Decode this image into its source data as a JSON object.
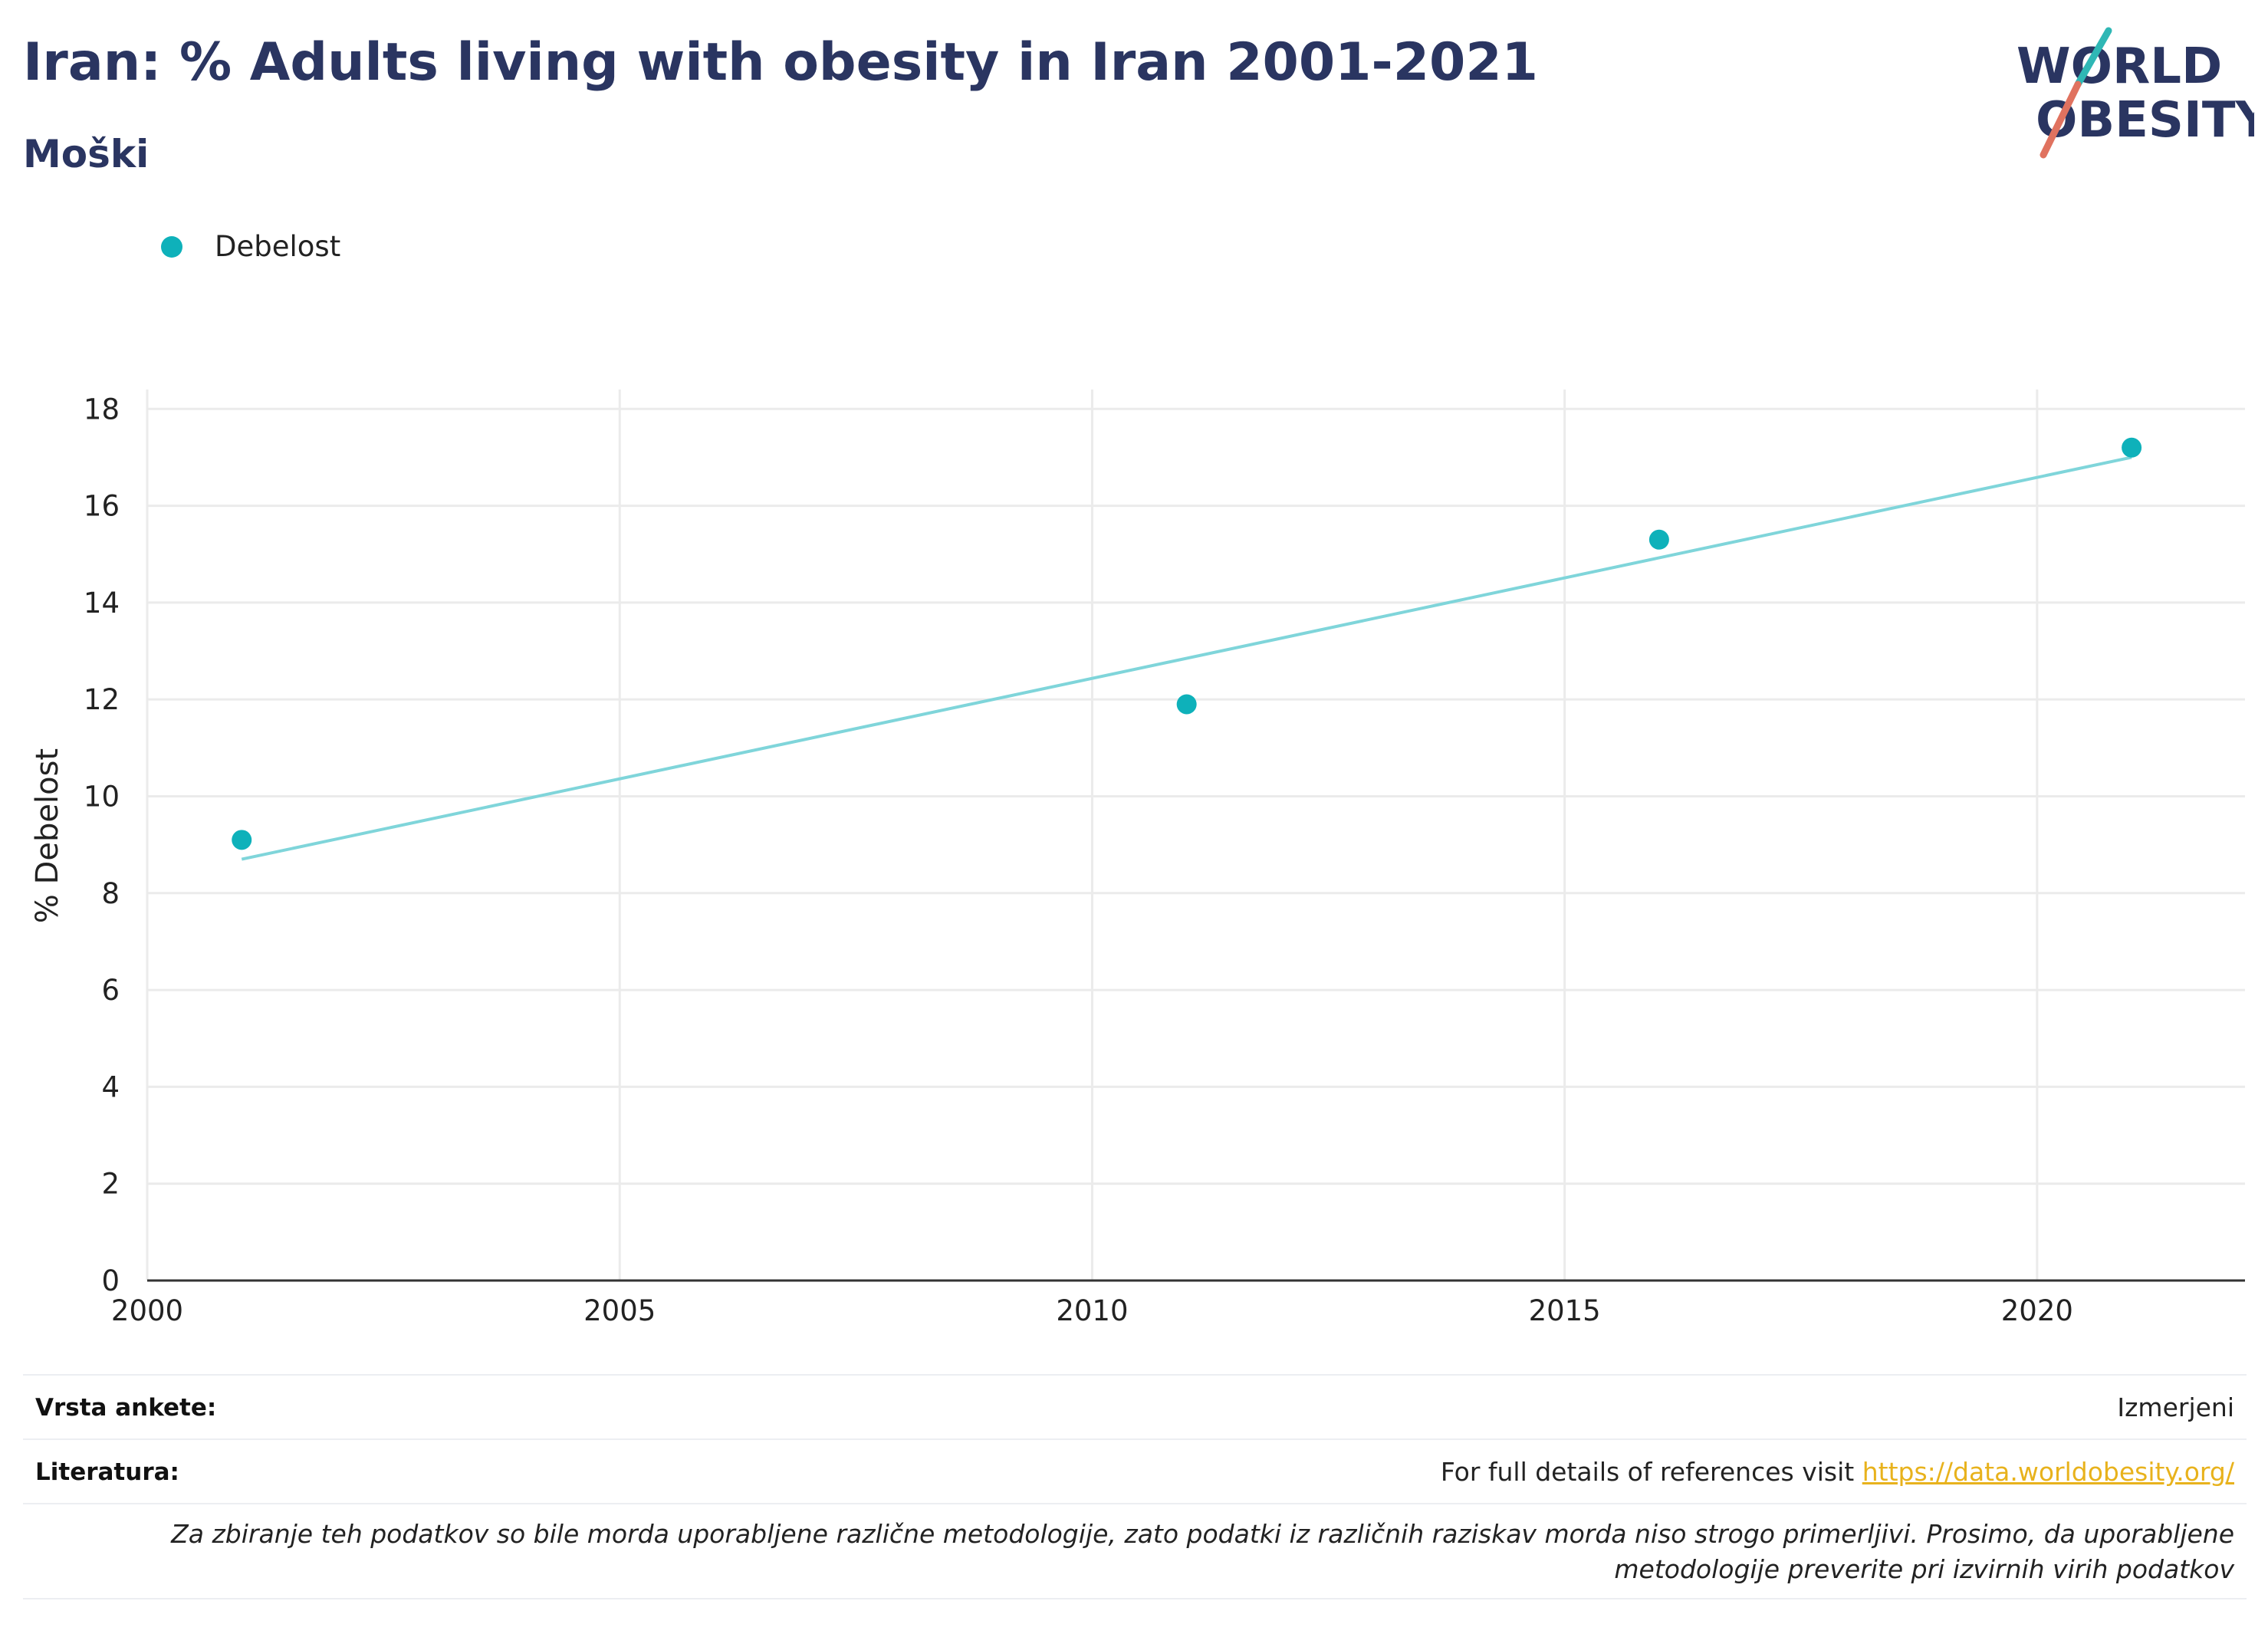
{
  "header": {
    "title": "Iran: % Adults living with obesity in Iran 2001-2021",
    "subtitle": "Moški"
  },
  "logo": {
    "line1": "WORLD",
    "line2": "OBESITY"
  },
  "legend": {
    "label": "Debelost"
  },
  "colors": {
    "accent": "#0eb1ba",
    "trend": "#7fd5da",
    "title": "#2a3561",
    "link": "#e8b21c"
  },
  "chart_data": {
    "type": "scatter",
    "title": "Iran: % Adults living with obesity in Iran 2001-2021",
    "subtitle": "Moški",
    "xlabel": "",
    "ylabel": "% Debelost",
    "xlim": [
      2000,
      2022.2
    ],
    "ylim": [
      0,
      18.4
    ],
    "x_ticks": [
      2000,
      2005,
      2010,
      2015,
      2020
    ],
    "y_ticks": [
      0,
      2,
      4,
      6,
      8,
      10,
      12,
      14,
      16,
      18
    ],
    "grid": true,
    "legend_position": "top-left",
    "series": [
      {
        "name": "Debelost",
        "x": [
          2001,
          2011,
          2016,
          2021
        ],
        "y": [
          9.1,
          11.9,
          15.3,
          17.2
        ]
      }
    ],
    "trendline": {
      "x": [
        2001,
        2021
      ],
      "y": [
        8.7,
        17.0
      ]
    }
  },
  "footer": {
    "survey_label": "Vrsta ankete:",
    "survey_value": "Izmerjeni",
    "refs_label": "Literatura:",
    "refs_text": "For full details of references visit ",
    "refs_link": "https://data.worldobesity.org/",
    "note": "Za zbiranje teh podatkov so bile morda uporabljene različne metodologije, zato podatki iz različnih raziskav morda niso strogo primerljivi. Prosimo, da uporabljene metodologije preverite pri izvirnih virih podatkov"
  }
}
